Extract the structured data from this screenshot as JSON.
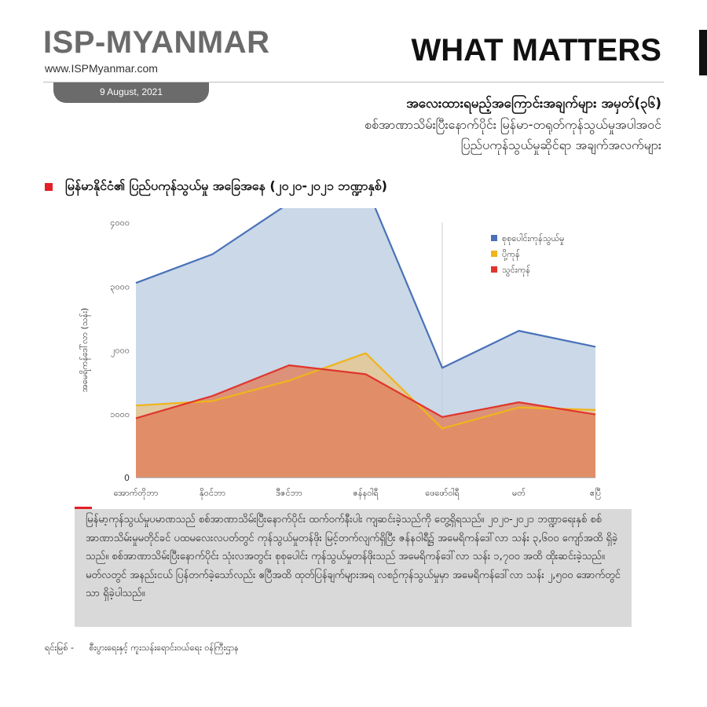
{
  "header": {
    "brand": "ISP-MYANMAR",
    "website": "www.ISPMyanmar.com",
    "what_matters": "WHAT MATTERS",
    "date": "9 August, 2021"
  },
  "title": {
    "line1": "အလေးထားရမည့်အကြောင်းအချက်များ အမှတ်(၃၆)",
    "line2": "စစ်အာဏာသိမ်းပြီးနောက်ပိုင်း မြန်မာ-တရုတ်ကုန်သွယ်မှုအပါအဝင်",
    "line3": "ပြည်ပကုန်သွယ်မှုဆိုင်ရာ အချက်အလက်များ"
  },
  "section": {
    "heading": "မြန်မာနိုင်ငံ၏ ပြည်ပကုန်သွယ်မှု အခြေအနေ (၂၀၂၀-၂၀၂၁ ဘဏ္ဍာနှစ်)"
  },
  "chart_data": {
    "type": "area",
    "categories": [
      "အောက်တိုဘာ",
      "နိုဝင်ဘာ",
      "ဒီဇင်ဘာ",
      "ဇန်နဝါရီ",
      "ဖေဖော်ဝါရီ",
      "မတ်",
      "ဧပြီ"
    ],
    "series": [
      {
        "name": "စုစုပေါင်းကုန်သွယ်မှု",
        "values": [
          3050,
          3500,
          4300,
          4580,
          1720,
          2300,
          2050
        ],
        "color": "#4a72b8",
        "fill": "#b8cbe0"
      },
      {
        "name": "ပို့ကုန်",
        "values": [
          1130,
          1200,
          1520,
          1950,
          770,
          1100,
          1060
        ],
        "color": "#f0b41c",
        "fill": "#e8c488"
      },
      {
        "name": "သွင်းကုန်",
        "values": [
          930,
          1280,
          1760,
          1620,
          950,
          1180,
          990
        ],
        "color": "#e0352c",
        "fill": "#e07a55"
      }
    ],
    "ylabel": "အမေရိကန်ဒေါ်လာ (သန်း)",
    "yticks": [
      0,
      1000,
      2000,
      3000,
      4000
    ],
    "ytick_labels": [
      "0",
      "၁၀၀၀",
      "၂၀၀၀",
      "၃၀၀၀",
      "၄၀၀၀"
    ],
    "ylim": [
      0,
      4000
    ],
    "grid": false,
    "legend_position": "top-right"
  },
  "note": {
    "text": "မြန်မာ့ကုန်သွယ်မှုပမာဏသည် စစ်အာဏာသိမ်းပြီးနောက်ပိုင်း ထက်ဝက်နီးပါး ကျဆင်းခဲ့သည်ကို တွေ့ရှိရသည်။ ၂၀၂၀-၂၀၂၁ ဘဏ္ဍာရေးနှစ် စစ်အာဏာသိမ်းမှုမတိုင်ခင် ပထမလေးလပတ်တွင် ကုန်သွယ်မှုတန်ဖိုး မြင့်တက်လျက်ရှိပြီး ဇန်နဝါရီ၌ အမေရိကန်ဒေါ်လာ သန်း ၃,၆၀၀ ကျော်အထိ ရှိခဲ့သည်။ စစ်အာဏာသိမ်းပြီးနောက်ပိုင်း သုံးလအတွင်း စုစုပေါင်း ကုန်သွယ်မှုတန်ဖိုးသည် အမေရိကန်ဒေါ်လာ သန်း ၁,၇၀၀ အထိ ထိုးဆင်းခဲ့သည်။ မတ်လတွင် အနည်းငယ် ပြန်တက်ခဲ့သော်လည်း ဧပြီအထိ ထုတ်ပြန်ချက်များအရ လစဉ်ကုန်သွယ်မှုမှာ အမေရိကန်ဒေါ်လာ သန်း ၂,၅၀၀ အောက်တွင်သာ ရှိခဲ့ပါသည်။"
  },
  "source": {
    "label": "ရင်းမြစ် -",
    "text": "စီးပွားရေးနှင့် ကူးသန်းရောင်းဝယ်ရေး ဝန်ကြီးဌာန"
  }
}
